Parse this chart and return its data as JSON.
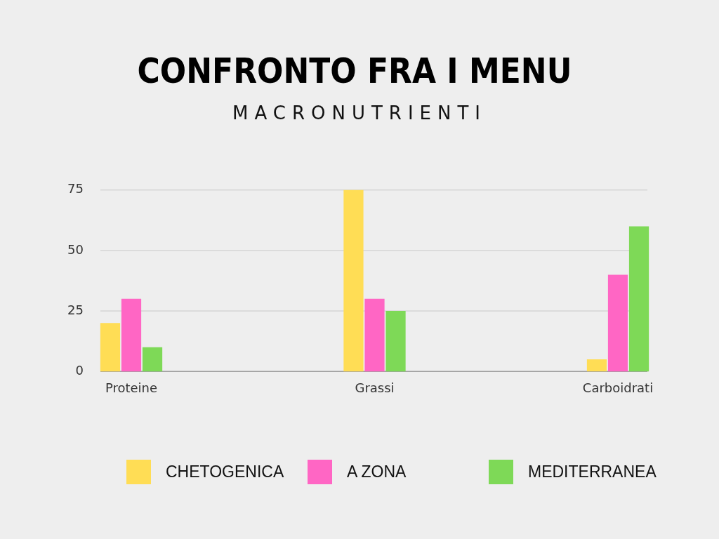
{
  "chart_data": {
    "type": "bar",
    "title": "CONFRONTO FRA I MENU",
    "subtitle": "MACRONUTRIENTI",
    "categories": [
      "Proteine",
      "Grassi",
      "Carboidrati"
    ],
    "series": [
      {
        "name": "CHETOGENICA",
        "color": "#ffdd55",
        "values": [
          20,
          75,
          5
        ]
      },
      {
        "name": "A ZONA",
        "color": "#ff66c4",
        "values": [
          30,
          30,
          40
        ]
      },
      {
        "name": "MEDITERRANEA",
        "color": "#7ed957",
        "values": [
          10,
          25,
          60
        ]
      }
    ],
    "ylim": [
      0,
      75
    ],
    "yticks": [
      0,
      25,
      50,
      75
    ],
    "grid": "y",
    "legend": "bottom"
  }
}
